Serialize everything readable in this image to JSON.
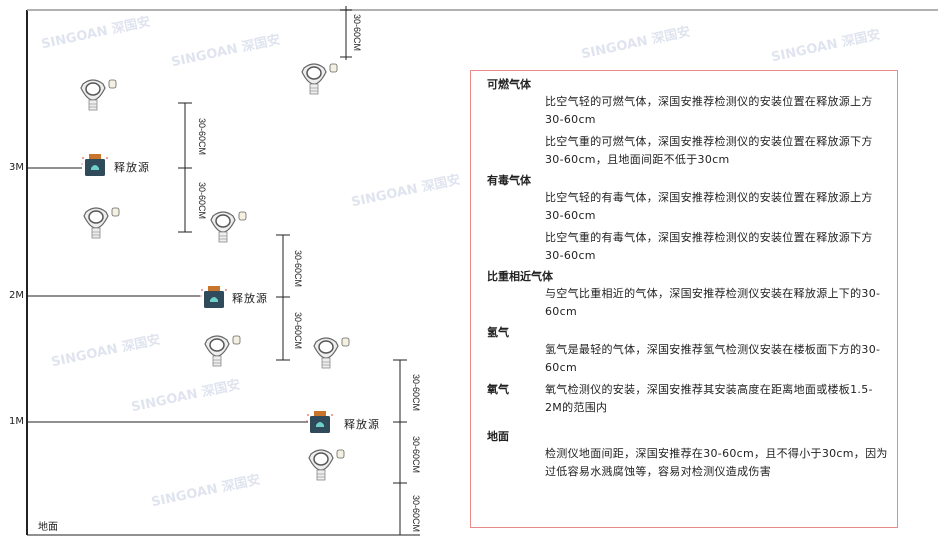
{
  "levels": {
    "m3": "3M",
    "m2": "2M",
    "m1": "1M",
    "ground": "地面"
  },
  "dimension_label": "30-60CM",
  "source_label": "释放源",
  "watermark": "SINGOAN 深国安",
  "icons": {
    "detector": "gas-detector-icon",
    "source": "release-source-icon"
  },
  "colors": {
    "panel_border": "#e88a8a",
    "lines": "#222222",
    "source_body": "#2f4a5a",
    "source_cap": "#c8742a"
  },
  "panel": {
    "sections": [
      {
        "title": "可燃气体",
        "paras": [
          "比空气轻的可燃气体，深国安推荐检测仪的安装位置在释放源上方30-60cm",
          "比空气重的可燃气体，深国安推荐检测仪的安装位置在释放源下方30-60cm，且地面间距不低于30cm"
        ]
      },
      {
        "title": "有毒气体",
        "paras": [
          "比空气轻的有毒气体，深国安推荐检测仪的安装位置在释放源上方30-60cm",
          "比空气重的有毒气体，深国安推荐检测仪的安装位置在释放源下方30-60cm"
        ]
      },
      {
        "title": "比重相近气体",
        "paras": [
          "与空气比重相近的气体，深国安推荐检测仪安装在释放源上下的30-60cm"
        ]
      },
      {
        "title": "氢气",
        "paras": [
          "氢气是最轻的气体，深国安推荐氢气检测仪安装在楼板面下方的30-60cm"
        ]
      },
      {
        "title": "氧气",
        "paras": [
          "氧气检测仪的安装，深国安推荐其安装高度在距离地面或楼板1.5-2M的范围内"
        ]
      },
      {
        "title": "地面",
        "paras": [
          "检测仪地面间距，深国安推荐在30-60cm，且不得小于30cm，因为过低容易水溅腐蚀等，容易对检测仪造成伤害"
        ]
      }
    ]
  }
}
